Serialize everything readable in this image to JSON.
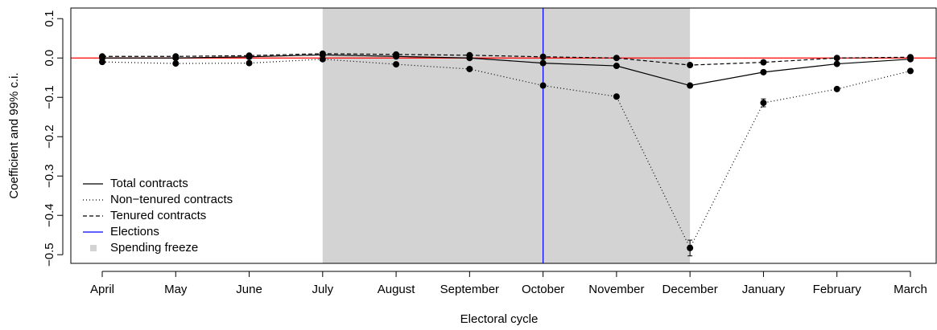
{
  "chart_data": {
    "type": "line",
    "x_label": "Electoral cycle",
    "y_label": "Coefficient and 99% c.i.",
    "categories": [
      "April",
      "May",
      "June",
      "July",
      "August",
      "September",
      "October",
      "November",
      "December",
      "January",
      "February",
      "March"
    ],
    "series": [
      {
        "name": "Total contracts",
        "color": "#000000",
        "dash": "none",
        "values": [
          0.0,
          0.0,
          0.003,
          0.008,
          0.004,
          0.0,
          -0.013,
          -0.02,
          -0.07,
          -0.036,
          -0.015,
          -0.003
        ]
      },
      {
        "name": "Non−tenured contracts",
        "color": "#000000",
        "dash": "dotted",
        "values": [
          -0.01,
          -0.014,
          -0.013,
          -0.003,
          -0.016,
          -0.028,
          -0.07,
          -0.098,
          -0.483,
          -0.114,
          -0.079,
          -0.033
        ],
        "errors": [
          0.003,
          0.003,
          0.003,
          0.003,
          0.003,
          0.003,
          0.003,
          0.003,
          0.02,
          0.01,
          0.004,
          0.003
        ]
      },
      {
        "name": "Tenured contracts",
        "color": "#000000",
        "dash": "dashed",
        "values": [
          0.004,
          0.004,
          0.006,
          0.011,
          0.009,
          0.007,
          0.003,
          0.0,
          -0.018,
          -0.011,
          0.0,
          0.002
        ]
      }
    ],
    "elections": {
      "label": "Elections",
      "at": "October",
      "color": "#0000ff"
    },
    "freeze": {
      "label": "Spending freeze",
      "from": "July",
      "to": "December",
      "color": "#d3d3d3"
    },
    "reference_line": {
      "value": 0,
      "color": "#ff0000"
    },
    "ylim": [
      -0.522,
      0.127
    ],
    "yticks": [
      0.1,
      {
        "value": 0,
        "label": "0.0"
      },
      {
        "value": -0.1,
        "label": "−0.1"
      },
      {
        "value": -0.2,
        "label": "−0.2"
      },
      {
        "value": -0.3,
        "label": "−0.3"
      },
      {
        "value": -0.4,
        "label": "−0.4"
      },
      {
        "value": -0.5,
        "label": "−0.5"
      }
    ],
    "legend": "bottomleft"
  }
}
